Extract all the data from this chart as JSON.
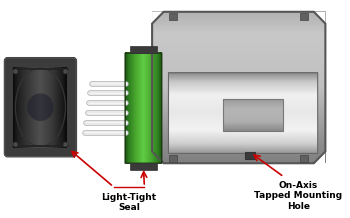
{
  "bg_color": "#ffffff",
  "label1": "Light-Tight\nSeal",
  "label2": "On-Axis\nTapped Mounting\nHole",
  "arrow_color": "#cc0000",
  "text_color": "#000000",
  "housing_outer": "#8a8a8a",
  "housing_light": "#c0c0c0",
  "housing_mid": "#999999",
  "housing_dark": "#6a6a6a",
  "housing_chamfer": "#787878",
  "cylinder_bright": "#f0f0f0",
  "cylinder_mid": "#d0d0d0",
  "cylinder_dark": "#909090",
  "window_fill": "#aaaaaa",
  "green_dark": "#1a5210",
  "green_mid": "#2e7d20",
  "green_light": "#4aaa30",
  "green_highlight": "#60cc45",
  "black_edge": "#1a1a1a",
  "black_mid": "#353535",
  "black_light": "#505050",
  "black_bright": "#656565",
  "black_ring": "#222222",
  "wire_light": "#e8e8e8",
  "wire_shadow": "#b0b0b0",
  "tab_color": "#444444",
  "mount_hole": "#3a3a3a"
}
